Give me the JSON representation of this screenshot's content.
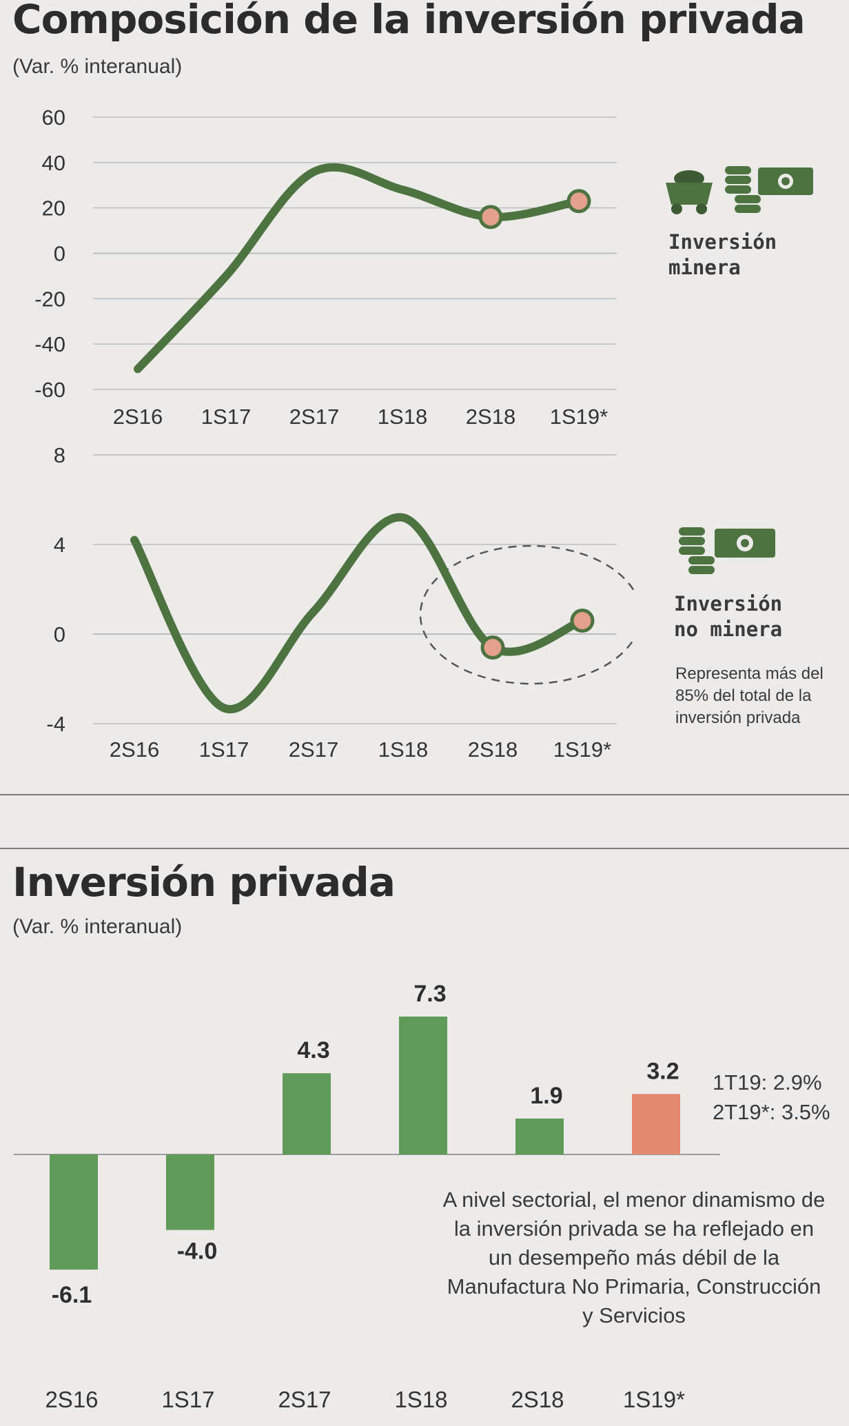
{
  "sections": {
    "composition": {
      "title": "Composición de la inversión privada",
      "subtitle": "(Var. % interanual)"
    },
    "private": {
      "title": "Inversión privada",
      "subtitle": "(Var. % interanual)",
      "quarter_notes": [
        "1T19: 2.9%",
        "2T19*: 3.5%"
      ],
      "note": "A nivel sectorial, el menor dinamismo de la inversión privada se ha reflejado en un desempeño más débil de la Manufactura No Primaria, Construcción y Servicios"
    }
  },
  "legends": {
    "mining": {
      "title": "Inversión\nminera",
      "icons": [
        "mining-cart-icon",
        "coins-icon",
        "banknote-icon"
      ]
    },
    "non_mining": {
      "title": "Inversión\nno minera",
      "note": "Representa más del 85% del total de la inversión privada",
      "icons": [
        "coins-icon",
        "banknote-icon"
      ]
    }
  },
  "colors": {
    "line": "#4d7341",
    "bar": "#5f9a58",
    "bar_highlight": "#e2896e",
    "marker": "#e3a08c",
    "grid": "#bcbcbc"
  },
  "chart_data": [
    {
      "type": "line",
      "title": "Inversión minera",
      "categories": [
        "2S16",
        "1S17",
        "2S17",
        "1S18",
        "2S18",
        "1S19*"
      ],
      "values": [
        -51,
        -10,
        36,
        28,
        16,
        23
      ],
      "yticks": [
        "60",
        "40",
        "20",
        "0",
        "-20",
        "-40",
        "-60"
      ],
      "ylim": [
        -60,
        60
      ],
      "highlight_points": [
        4,
        5
      ],
      "grid": true
    },
    {
      "type": "line",
      "title": "Inversión no minera",
      "categories": [
        "2S16",
        "1S17",
        "2S17",
        "1S18",
        "2S18",
        "1S19*"
      ],
      "values": [
        4.2,
        -3.3,
        1.0,
        5.2,
        -0.6,
        0.6
      ],
      "yticks": [
        "8",
        "4",
        "0",
        "-4"
      ],
      "ylim": [
        -4,
        8
      ],
      "highlight_points": [
        4,
        5
      ],
      "grid": true
    },
    {
      "type": "bar",
      "title": "Inversión privada",
      "categories": [
        "2S16",
        "1S17",
        "2S17",
        "1S18",
        "2S18",
        "1S19*"
      ],
      "values": [
        -6.1,
        -4.0,
        4.3,
        7.3,
        1.9,
        3.2
      ],
      "labels": [
        "-6.1",
        "-4.0",
        "4.3",
        "7.3",
        "1.9",
        "3.2"
      ],
      "highlight_index": 5
    }
  ]
}
